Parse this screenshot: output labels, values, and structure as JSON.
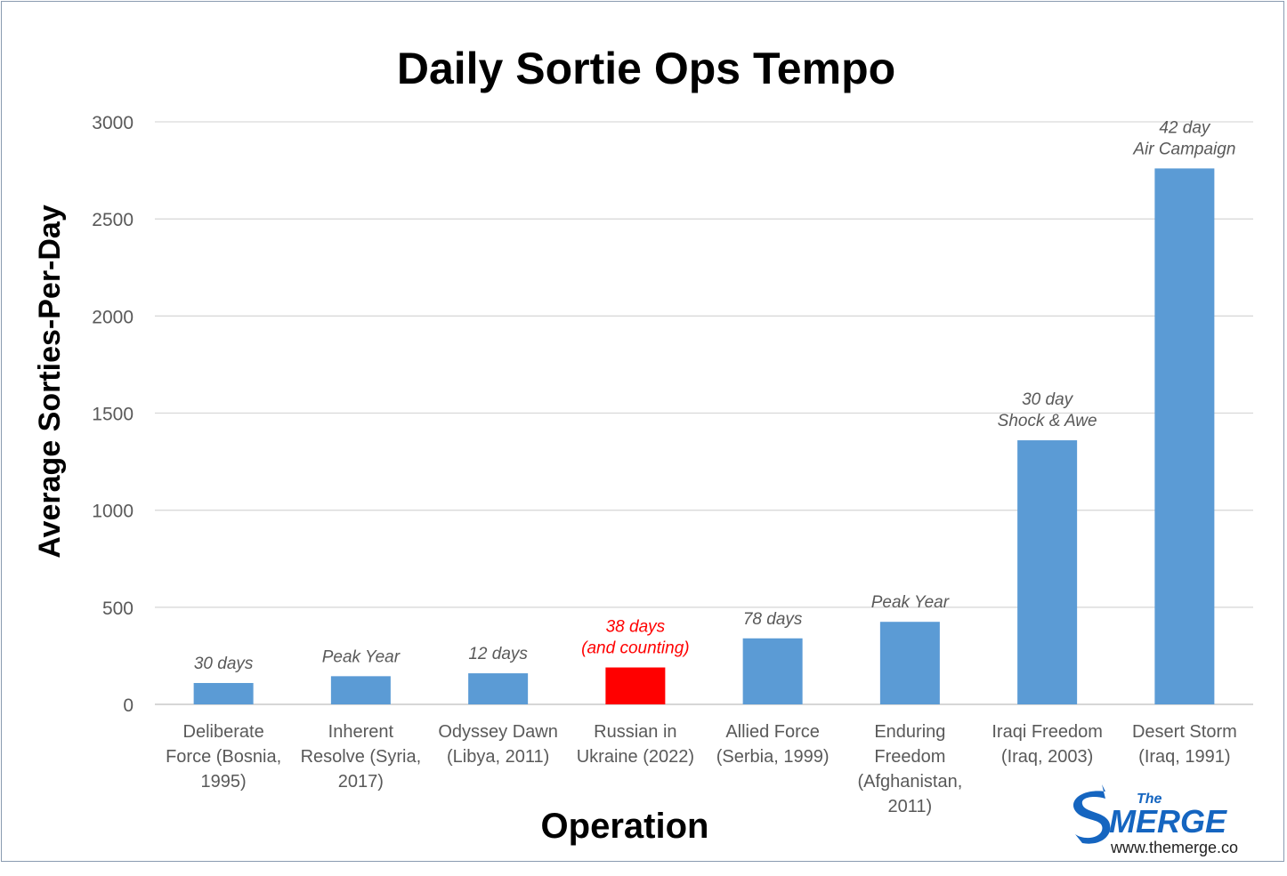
{
  "chart_data": {
    "type": "bar",
    "title": "Daily Sortie Ops Tempo",
    "xlabel": "Operation",
    "ylabel": "Average Sorties-Per-Day",
    "ylim": [
      0,
      3000
    ],
    "yticks": [
      0,
      500,
      1000,
      1500,
      2000,
      2500,
      3000
    ],
    "grid": true,
    "categories": [
      [
        "Deliberate",
        "Force (Bosnia,",
        "1995)"
      ],
      [
        "Inherent",
        "Resolve (Syria,",
        "2017)"
      ],
      [
        "Odyssey Dawn",
        "(Libya, 2011)"
      ],
      [
        "Russian in",
        "Ukraine (2022)"
      ],
      [
        "Allied Force",
        "(Serbia, 1999)"
      ],
      [
        "Enduring",
        "Freedom",
        "(Afghanistan,",
        "2011)"
      ],
      [
        "Iraqi Freedom",
        "(Iraq, 2003)"
      ],
      [
        "Desert Storm",
        "(Iraq, 1991)"
      ]
    ],
    "values": [
      110,
      145,
      160,
      190,
      340,
      425,
      1360,
      2760
    ],
    "annotations": [
      [
        "30 days"
      ],
      [
        "Peak Year"
      ],
      [
        "12 days"
      ],
      [
        "38 days",
        "(and counting)"
      ],
      [
        "78 days"
      ],
      [
        "Peak Year"
      ],
      [
        "30 day",
        "Shock & Awe"
      ],
      [
        "42 day",
        "Air Campaign"
      ]
    ],
    "colors": {
      "bar": "#5b9bd5",
      "highlight": "#ff0000",
      "highlight_index": 3
    }
  },
  "logo": {
    "the": "The",
    "name": "MERGE",
    "url": "www.themerge.co",
    "color": "#1565c0"
  }
}
